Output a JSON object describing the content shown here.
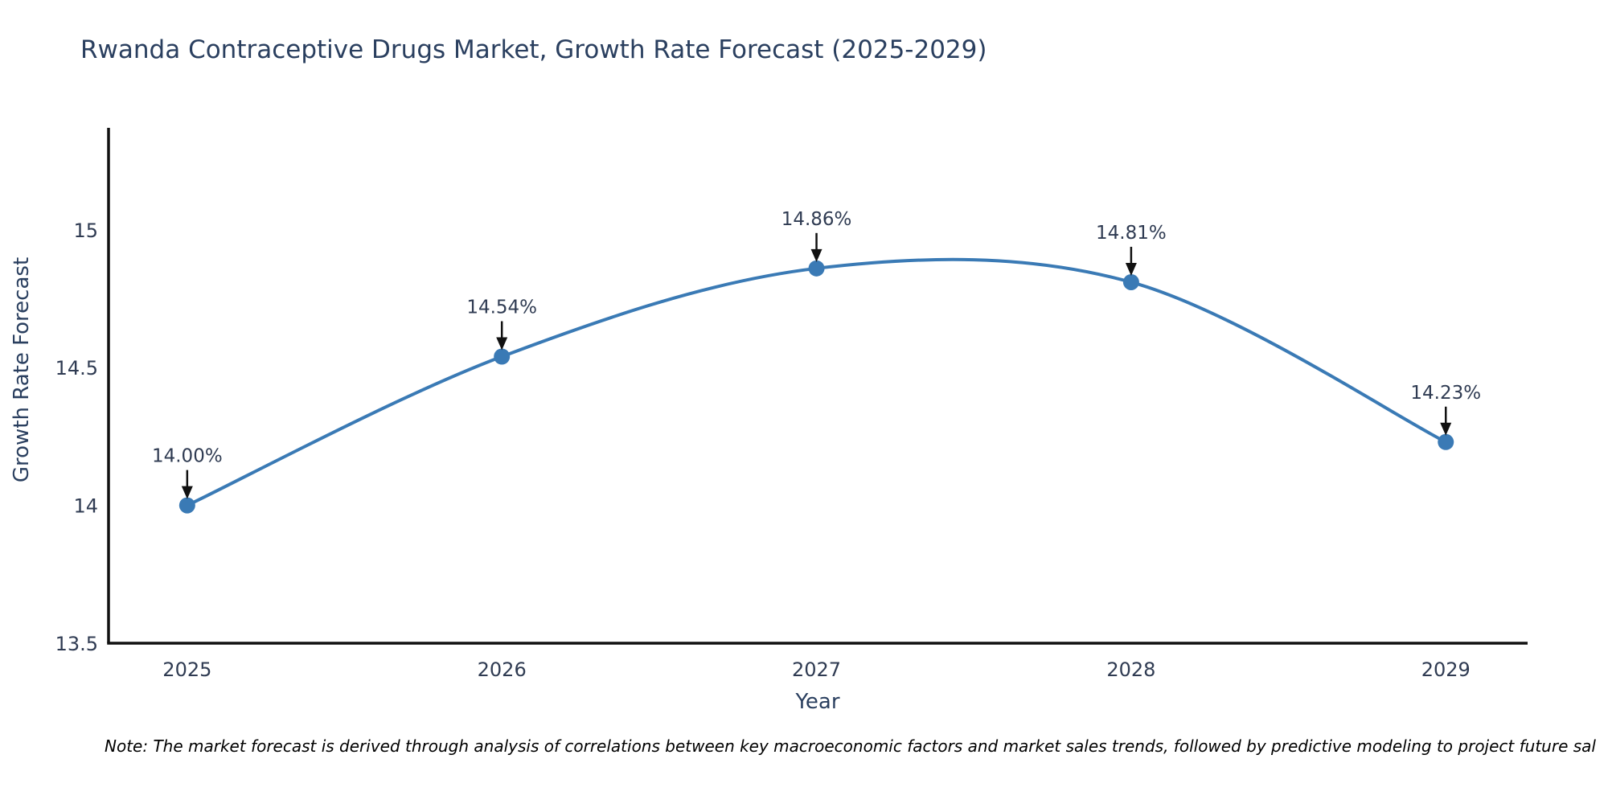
{
  "note": "Note: The market forecast is derived through analysis of correlations between key macroeconomic factors and market sales trends, followed by predictive modeling to project future sal",
  "chart_data": {
    "type": "line",
    "title": "Rwanda Contraceptive Drugs Market, Growth Rate Forecast (2025-2029)",
    "xlabel": "Year",
    "ylabel": "Growth Rate Forecast",
    "x": [
      2025,
      2026,
      2027,
      2028,
      2029
    ],
    "series": [
      {
        "name": "Growth Rate Forecast",
        "values": [
          14.0,
          14.54,
          14.86,
          14.81,
          14.23
        ]
      }
    ],
    "point_labels": [
      "14.00%",
      "14.54%",
      "14.86%",
      "14.81%",
      "14.23%"
    ],
    "xtick_labels": [
      "2025",
      "2026",
      "2027",
      "2028",
      "2029"
    ],
    "yticks": [
      13.5,
      14,
      14.5,
      15
    ],
    "ytick_labels": [
      "13.5",
      "14",
      "14.5",
      "15"
    ],
    "xlim": [
      2024.75,
      2029.26
    ],
    "ylim": [
      13.5,
      15.37
    ],
    "grid": false,
    "legend": "none",
    "line_shape": "spline",
    "colors": {
      "line": "#3a7ab5",
      "marker": "#3a7ab5",
      "axis": "#111111",
      "tick_text": "#2f3b52",
      "annotation_text": "#2f3b52",
      "annotation_arrow": "#111111",
      "title_text": "#2a3f5f"
    }
  }
}
